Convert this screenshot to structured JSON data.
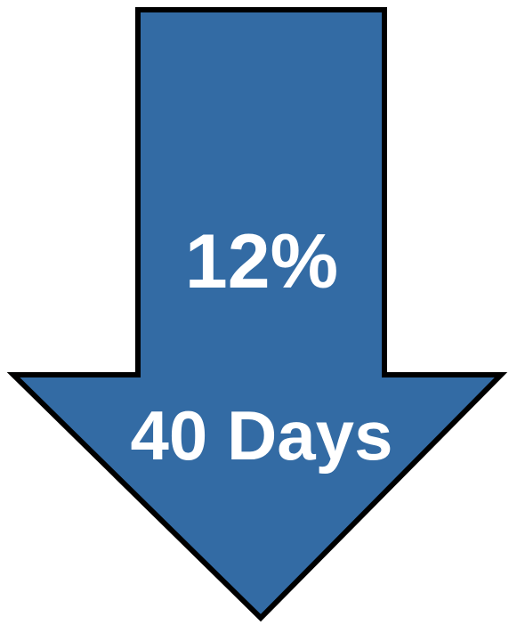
{
  "arrow": {
    "direction": "down",
    "fill_color": "#336BA4",
    "stroke_color": "#000000"
  },
  "labels": {
    "percent": "12%",
    "duration": "40 Days"
  }
}
